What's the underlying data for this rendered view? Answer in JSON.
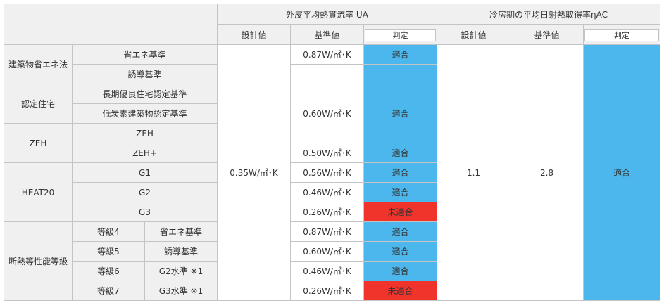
{
  "headers": {
    "ua_title": "外皮平均熱貫流率 UA",
    "nac_title": "冷房期の平均日射熱取得率ηAC",
    "ua_design": "設計値",
    "ua_standard": "基準値",
    "ua_judgement": "判定",
    "nac_design": "設計値",
    "nac_standard": "基準値",
    "nac_judgement": "判定"
  },
  "categories": {
    "energy_law": "建築物省エネ法",
    "certified_house": "認定住宅",
    "zeh": "ZEH",
    "heat20": "HEAT20",
    "insulation_grade": "断熱等性能等級"
  },
  "rows": [
    {
      "label": "省エネ基準",
      "standard": "0.87W/㎡･K",
      "judgement": "適合"
    },
    {
      "label": "誘導基準"
    },
    {
      "label": "長期優良住宅認定基準",
      "standard": "0.60W/㎡･K",
      "judgement": "適合"
    },
    {
      "label": "低炭素建築物認定基準"
    },
    {
      "label": "ZEH"
    },
    {
      "label": "ZEH+",
      "standard": "0.50W/㎡･K",
      "judgement": "適合"
    },
    {
      "label": "G1",
      "standard": "0.56W/㎡･K",
      "judgement": "適合"
    },
    {
      "label": "G2",
      "standard": "0.46W/㎡･K",
      "judgement": "適合"
    },
    {
      "label": "G3",
      "standard": "0.26W/㎡･K",
      "judgement": "未適合"
    },
    {
      "grade": "等級4",
      "label": "省エネ基準",
      "standard": "0.87W/㎡･K",
      "judgement": "適合"
    },
    {
      "grade": "等級5",
      "label": "誘導基準",
      "standard": "0.60W/㎡･K",
      "judgement": "適合"
    },
    {
      "grade": "等級6",
      "label": "G2水準 ※1",
      "standard": "0.46W/㎡･K",
      "judgement": "適合"
    },
    {
      "grade": "等級7",
      "label": "G3水準 ※1",
      "standard": "0.26W/㎡･K",
      "judgement": "未適合"
    }
  ],
  "ua_design_value": "0.35W/㎡･K",
  "nac": {
    "design": "1.1",
    "standard": "2.8",
    "judgement": "適合"
  },
  "colors": {
    "pass": "#4cb7ec",
    "fail": "#f0332b",
    "header_bg": "#f0f0f0",
    "border": "#c4c4c4"
  }
}
